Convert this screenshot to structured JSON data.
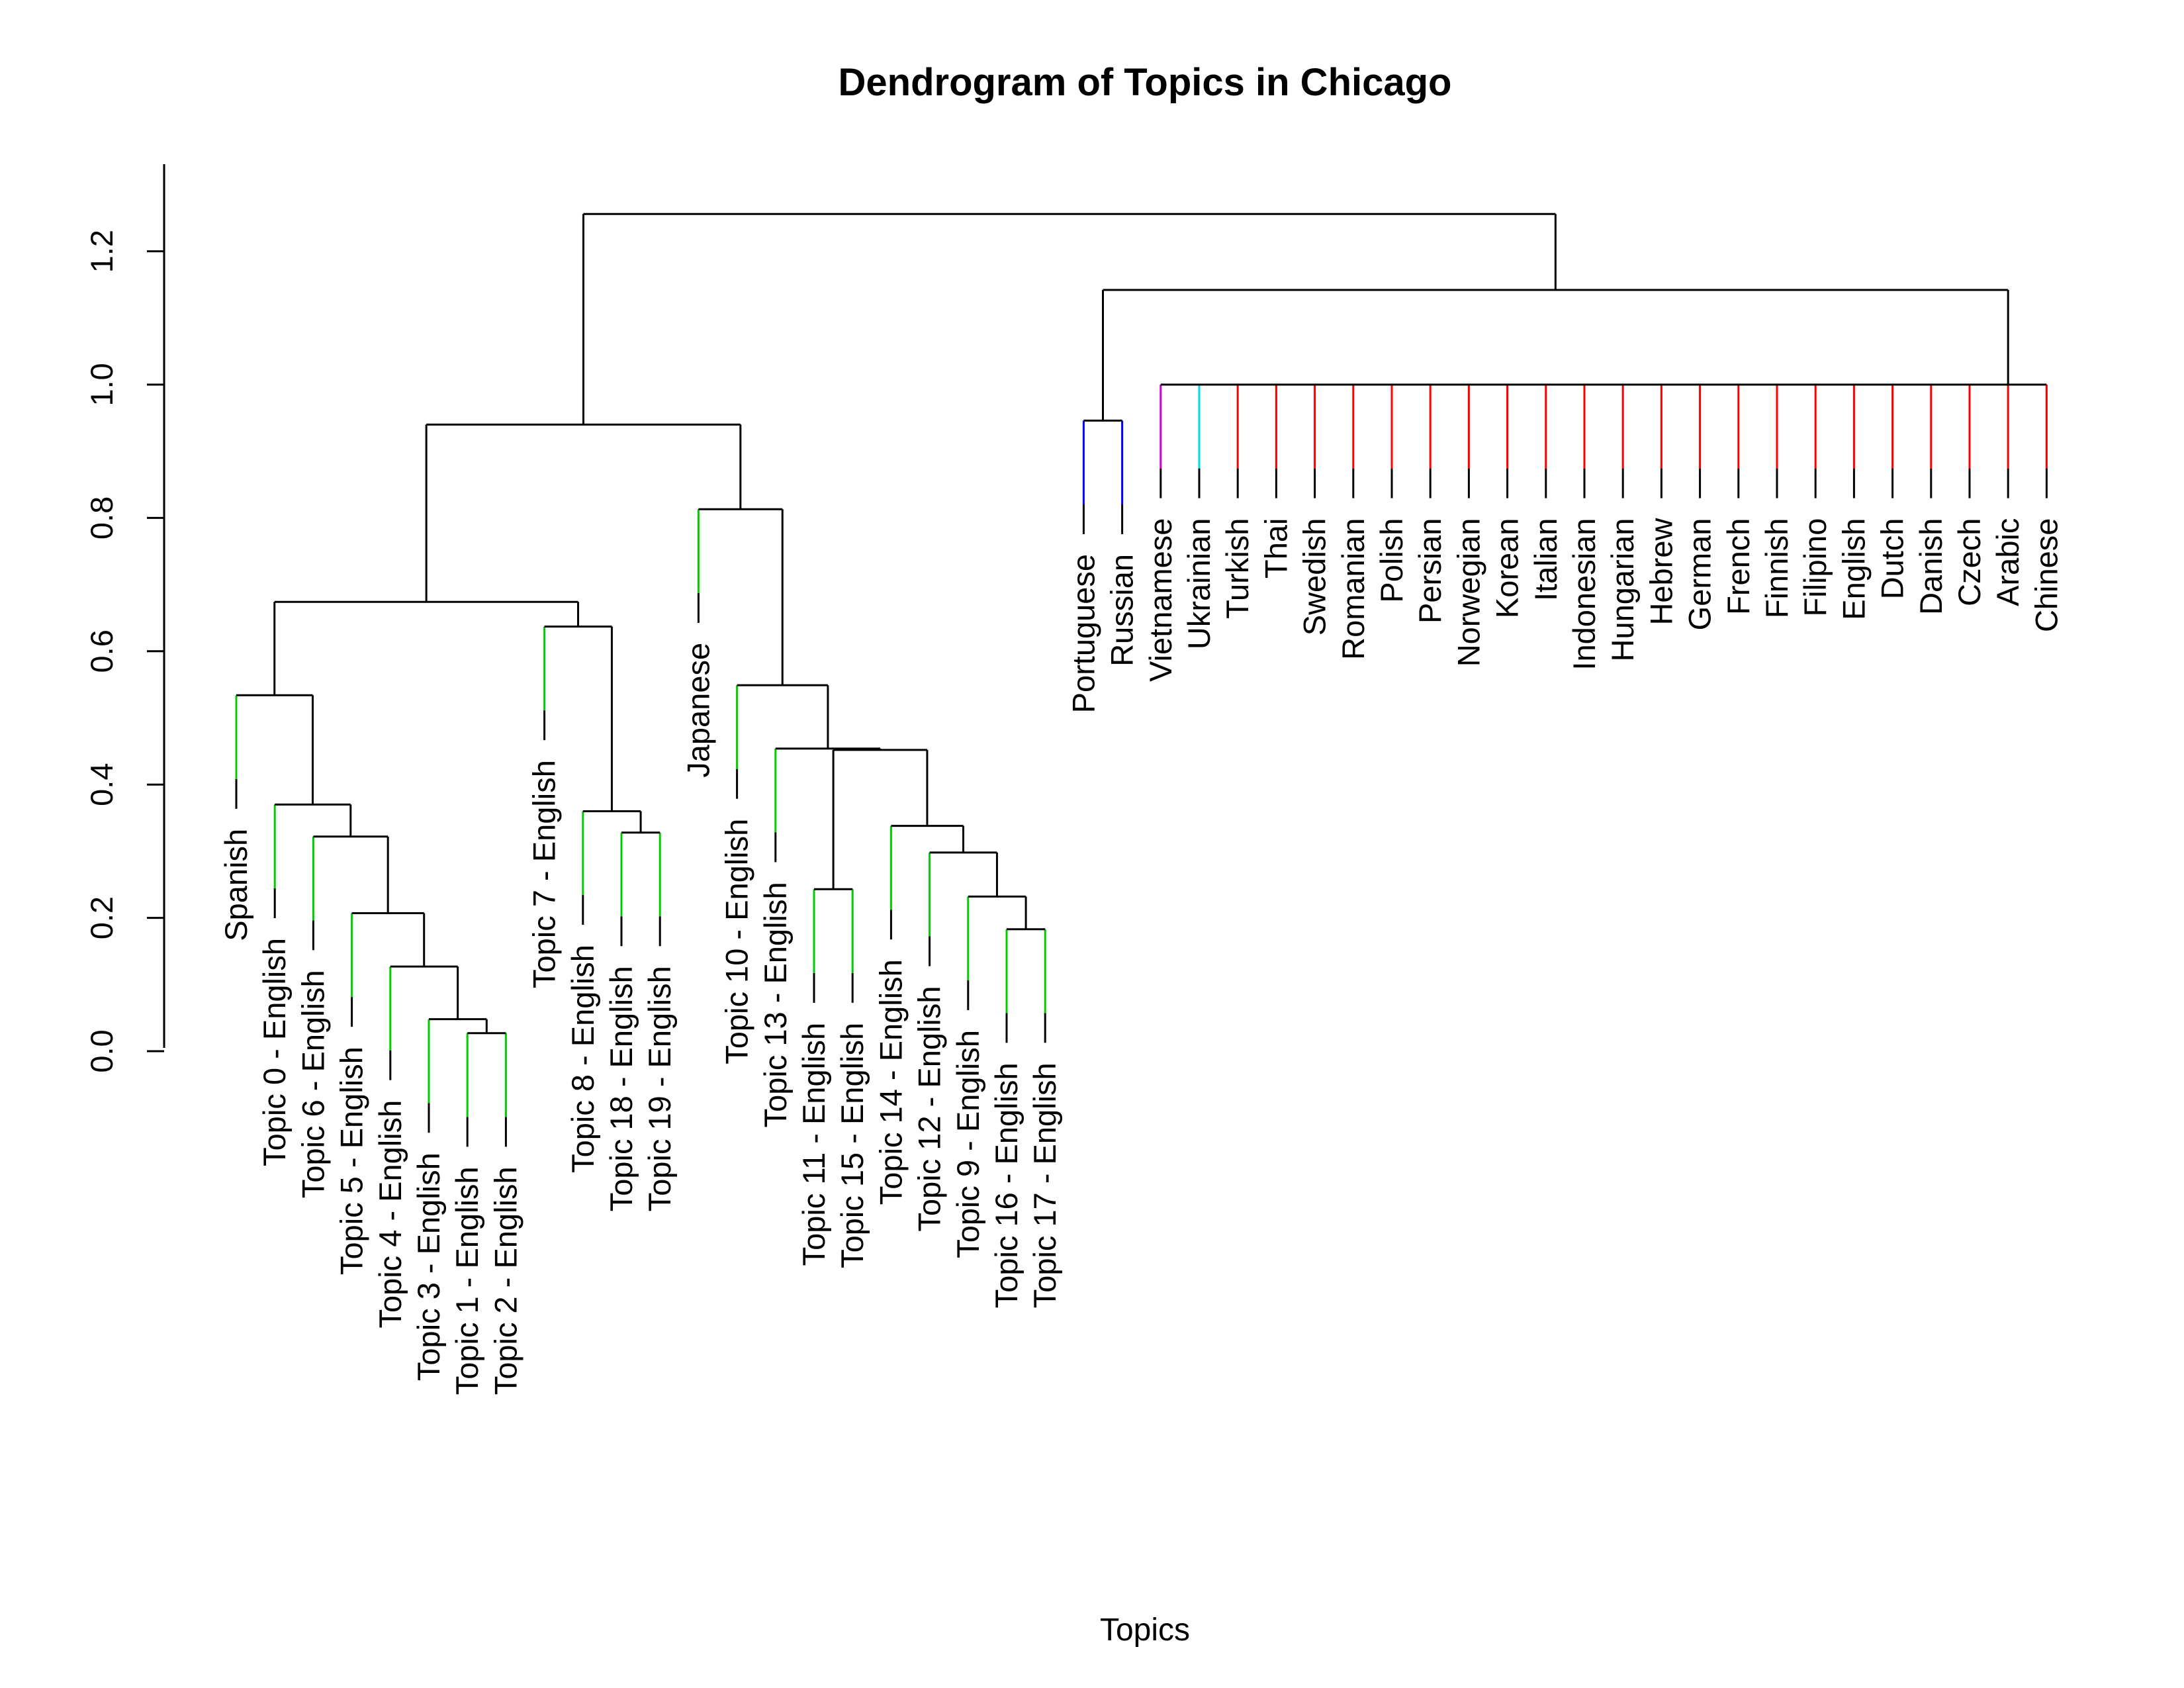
{
  "chart_data": {
    "type": "dendrogram",
    "title": "Dendrogram of Topics in Chicago",
    "xlabel": "Topics",
    "ylabel": "",
    "ylim": [
      0,
      1.3
    ],
    "yticks": [
      "0.0",
      "0.2",
      "0.4",
      "0.6",
      "0.8",
      "1.0",
      "1.2"
    ],
    "colors": {
      "tree": "#000000",
      "green": "#00cc00",
      "blue": "#0000ff",
      "magenta": "#cc00cc",
      "cyan": "#00dddd",
      "red": "#ff0000"
    },
    "leaves": [
      {
        "label": "Spanish",
        "color": "green"
      },
      {
        "label": "Topic 0 - English",
        "color": "green"
      },
      {
        "label": "Topic 6 - English",
        "color": "green"
      },
      {
        "label": "Topic 5 - English",
        "color": "green"
      },
      {
        "label": "Topic 4 - English",
        "color": "green"
      },
      {
        "label": "Topic 3 - English",
        "color": "green"
      },
      {
        "label": "Topic 1 - English",
        "color": "green"
      },
      {
        "label": "Topic 2 - English",
        "color": "green"
      },
      {
        "label": "Topic 7 - English",
        "color": "green"
      },
      {
        "label": "Topic 8 - English",
        "color": "green"
      },
      {
        "label": "Topic 18 - English",
        "color": "green"
      },
      {
        "label": "Topic 19 - English",
        "color": "green"
      },
      {
        "label": "Japanese",
        "color": "green"
      },
      {
        "label": "Topic 10 - English",
        "color": "green"
      },
      {
        "label": "Topic 13 - English",
        "color": "green"
      },
      {
        "label": "Topic 11 - English",
        "color": "green"
      },
      {
        "label": "Topic 15 - English",
        "color": "green"
      },
      {
        "label": "Topic 14 - English",
        "color": "green"
      },
      {
        "label": "Topic 12 - English",
        "color": "green"
      },
      {
        "label": "Topic 9 - English",
        "color": "green"
      },
      {
        "label": "Topic 16 - English",
        "color": "green"
      },
      {
        "label": "Topic 17 - English",
        "color": "green"
      },
      {
        "label": "Portuguese",
        "color": "blue"
      },
      {
        "label": "Russian",
        "color": "blue"
      },
      {
        "label": "Vietnamese",
        "color": "magenta"
      },
      {
        "label": "Ukrainian",
        "color": "cyan"
      },
      {
        "label": "Turkish",
        "color": "red"
      },
      {
        "label": "Thai",
        "color": "red"
      },
      {
        "label": "Swedish",
        "color": "red"
      },
      {
        "label": "Romanian",
        "color": "red"
      },
      {
        "label": "Polish",
        "color": "red"
      },
      {
        "label": "Persian",
        "color": "red"
      },
      {
        "label": "Norwegian",
        "color": "red"
      },
      {
        "label": "Korean",
        "color": "red"
      },
      {
        "label": "Italian",
        "color": "red"
      },
      {
        "label": "Indonesian",
        "color": "red"
      },
      {
        "label": "Hungarian",
        "color": "red"
      },
      {
        "label": "Hebrew",
        "color": "red"
      },
      {
        "label": "German",
        "color": "red"
      },
      {
        "label": "French",
        "color": "red"
      },
      {
        "label": "Finnish",
        "color": "red"
      },
      {
        "label": "Filipino",
        "color": "red"
      },
      {
        "label": "English",
        "color": "red"
      },
      {
        "label": "Dutch",
        "color": "red"
      },
      {
        "label": "Danish",
        "color": "red"
      },
      {
        "label": "Czech",
        "color": "red"
      },
      {
        "label": "Arabic",
        "color": "red"
      },
      {
        "label": "Chinese",
        "color": "red"
      }
    ],
    "merges": [
      [
        -7,
        -8,
        0.027
      ],
      [
        -6,
        1,
        0.048
      ],
      [
        -5,
        2,
        0.127
      ],
      [
        -4,
        3,
        0.207
      ],
      [
        -3,
        4,
        0.322
      ],
      [
        -2,
        5,
        0.37
      ],
      [
        -1,
        6,
        0.534
      ],
      [
        -11,
        -12,
        0.328
      ],
      [
        -10,
        8,
        0.36
      ],
      [
        -9,
        9,
        0.637
      ],
      [
        7,
        10,
        0.674
      ],
      [
        -21,
        -22,
        0.183
      ],
      [
        -20,
        12,
        0.232
      ],
      [
        -19,
        13,
        0.298
      ],
      [
        -18,
        14,
        0.338
      ],
      [
        -16,
        -17,
        0.243
      ],
      [
        16,
        15,
        0.452
      ],
      [
        -15,
        17,
        0.454
      ],
      [
        -14,
        18,
        0.549
      ],
      [
        -13,
        19,
        0.813
      ],
      [
        11,
        20,
        0.94
      ],
      [
        -23,
        -24,
        0.946
      ],
      [
        -25,
        -26,
        1.0
      ],
      [
        23,
        -27,
        1.0
      ],
      [
        24,
        -28,
        1.0
      ],
      [
        25,
        -29,
        1.0
      ],
      [
        26,
        -30,
        1.0
      ],
      [
        27,
        -31,
        1.0
      ],
      [
        28,
        -32,
        1.0
      ],
      [
        29,
        -33,
        1.0
      ],
      [
        30,
        -34,
        1.0
      ],
      [
        31,
        -35,
        1.0
      ],
      [
        32,
        -36,
        1.0
      ],
      [
        33,
        -37,
        1.0
      ],
      [
        34,
        -38,
        1.0
      ],
      [
        35,
        -39,
        1.0
      ],
      [
        36,
        -40,
        1.0
      ],
      [
        37,
        -41,
        1.0
      ],
      [
        38,
        -42,
        1.0
      ],
      [
        39,
        -43,
        1.0
      ],
      [
        40,
        -44,
        1.0
      ],
      [
        41,
        -45,
        1.0
      ],
      [
        42,
        -46,
        1.0
      ],
      [
        43,
        -47,
        1.0
      ],
      [
        44,
        -48,
        1.0
      ],
      [
        22,
        45,
        1.142
      ],
      [
        21,
        46,
        1.256
      ]
    ]
  }
}
